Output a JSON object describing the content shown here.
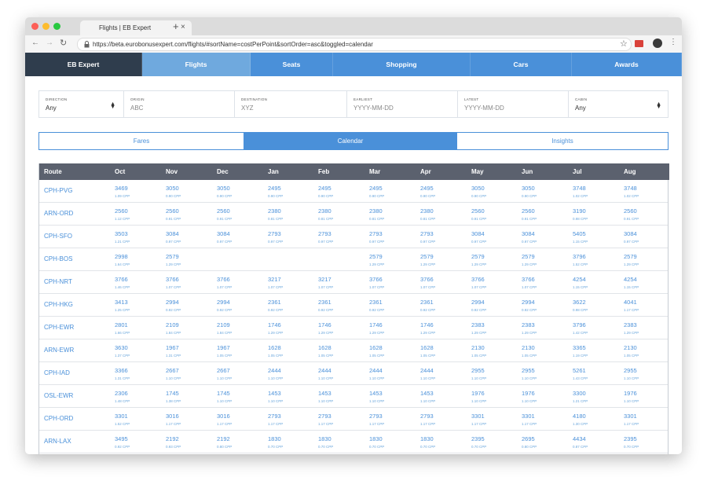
{
  "browser": {
    "tab_title": "Flights | EB Expert",
    "url": "https://beta.eurobonusexpert.com/flights/#sortName=costPerPoint&sortOrder=asc&toggled=calendar"
  },
  "nav": [
    "EB Expert",
    "Flights",
    "Seats",
    "Shopping",
    "Cars",
    "Awards"
  ],
  "filters": [
    {
      "label": "DIRECTION",
      "value": "Any"
    },
    {
      "label": "ORIGIN",
      "value": "ABC"
    },
    {
      "label": "DESTINATION",
      "value": "XYZ"
    },
    {
      "label": "EARLIEST",
      "value": "YYYY-MM-DD"
    },
    {
      "label": "LATEST",
      "value": "YYYY-MM-DD"
    },
    {
      "label": "CABIN",
      "value": "Any"
    }
  ],
  "view_tabs": [
    "Fares",
    "Calendar",
    "Insights"
  ],
  "table": {
    "header": [
      "Route",
      "Oct",
      "Nov",
      "Dec",
      "Jan",
      "Feb",
      "Mar",
      "Apr",
      "May",
      "Jun",
      "Jul",
      "Aug"
    ],
    "rows": [
      {
        "route": "CPH-PVG",
        "cells": [
          [
            "3469",
            "1.09 CPP"
          ],
          [
            "3050",
            "0.90 CPP"
          ],
          [
            "3050",
            "0.90 CPP"
          ],
          [
            "2495",
            "0.90 CPP"
          ],
          [
            "2495",
            "0.90 CPP"
          ],
          [
            "2495",
            "0.90 CPP"
          ],
          [
            "2495",
            "0.90 CPP"
          ],
          [
            "3050",
            "0.90 CPP"
          ],
          [
            "3050",
            "0.90 CPP"
          ],
          [
            "3748",
            "1.02 CPP"
          ],
          [
            "3748",
            "1.02 CPP"
          ]
        ]
      },
      {
        "route": "ARN-ORD",
        "cells": [
          [
            "2560",
            "1.12 CPP"
          ],
          [
            "2560",
            "0.91 CPP"
          ],
          [
            "2560",
            "0.91 CPP"
          ],
          [
            "2380",
            "0.81 CPP"
          ],
          [
            "2380",
            "0.81 CPP"
          ],
          [
            "2380",
            "0.81 CPP"
          ],
          [
            "2380",
            "0.81 CPP"
          ],
          [
            "2560",
            "0.91 CPP"
          ],
          [
            "2560",
            "0.91 CPP"
          ],
          [
            "3190",
            "0.98 CPP"
          ],
          [
            "2560",
            "0.91 CPP"
          ]
        ]
      },
      {
        "route": "CPH-SFO",
        "cells": [
          [
            "3503",
            "1.21 CPP"
          ],
          [
            "3084",
            "0.97 CPP"
          ],
          [
            "3084",
            "0.97 CPP"
          ],
          [
            "2793",
            "0.97 CPP"
          ],
          [
            "2793",
            "0.97 CPP"
          ],
          [
            "2793",
            "0.97 CPP"
          ],
          [
            "2793",
            "0.97 CPP"
          ],
          [
            "3084",
            "0.97 CPP"
          ],
          [
            "3084",
            "0.97 CPP"
          ],
          [
            "5405",
            "1.15 CPP"
          ],
          [
            "3084",
            "0.97 CPP"
          ]
        ]
      },
      {
        "route": "CPH-BOS",
        "cells": [
          [
            "2998",
            "1.64 CPP"
          ],
          [
            "2579",
            "1.29 CPP"
          ],
          null,
          null,
          null,
          [
            "2579",
            "1.29 CPP"
          ],
          [
            "2579",
            "1.29 CPP"
          ],
          [
            "2579",
            "1.29 CPP"
          ],
          [
            "2579",
            "1.29 CPP"
          ],
          [
            "3796",
            "1.52 CPP"
          ],
          [
            "2579",
            "1.29 CPP"
          ]
        ]
      },
      {
        "route": "CPH-NRT",
        "cells": [
          [
            "3766",
            "1.46 CPP"
          ],
          [
            "3766",
            "1.07 CPP"
          ],
          [
            "3766",
            "1.07 CPP"
          ],
          [
            "3217",
            "1.07 CPP"
          ],
          [
            "3217",
            "1.07 CPP"
          ],
          [
            "3766",
            "1.07 CPP"
          ],
          [
            "3766",
            "1.07 CPP"
          ],
          [
            "3766",
            "1.07 CPP"
          ],
          [
            "3766",
            "1.07 CPP"
          ],
          [
            "4254",
            "1.15 CPP"
          ],
          [
            "4254",
            "1.15 CPP"
          ]
        ]
      },
      {
        "route": "CPH-HKG",
        "cells": [
          [
            "3413",
            "1.25 CPP"
          ],
          [
            "2994",
            "0.92 CPP"
          ],
          [
            "2994",
            "0.92 CPP"
          ],
          [
            "2361",
            "0.92 CPP"
          ],
          [
            "2361",
            "0.92 CPP"
          ],
          [
            "2361",
            "0.92 CPP"
          ],
          [
            "2361",
            "0.92 CPP"
          ],
          [
            "2994",
            "0.92 CPP"
          ],
          [
            "2994",
            "0.92 CPP"
          ],
          [
            "3622",
            "0.98 CPP"
          ],
          [
            "4041",
            "1.17 CPP"
          ]
        ]
      },
      {
        "route": "CPH-EWR",
        "cells": [
          [
            "2801",
            "1.66 CPP"
          ],
          [
            "2109",
            "1.84 CPP"
          ],
          [
            "2109",
            "1.84 CPP"
          ],
          [
            "1746",
            "1.29 CPP"
          ],
          [
            "1746",
            "1.29 CPP"
          ],
          [
            "1746",
            "1.29 CPP"
          ],
          [
            "1746",
            "1.29 CPP"
          ],
          [
            "2383",
            "1.29 CPP"
          ],
          [
            "2383",
            "1.29 CPP"
          ],
          [
            "3796",
            "1.42 CPP"
          ],
          [
            "2383",
            "1.29 CPP"
          ]
        ]
      },
      {
        "route": "ARN-EWR",
        "cells": [
          [
            "3630",
            "1.37 CPP"
          ],
          [
            "1967",
            "1.31 CPP"
          ],
          [
            "1967",
            "1.05 CPP"
          ],
          [
            "1628",
            "1.05 CPP"
          ],
          [
            "1628",
            "1.05 CPP"
          ],
          [
            "1628",
            "1.05 CPP"
          ],
          [
            "1628",
            "1.05 CPP"
          ],
          [
            "2130",
            "1.05 CPP"
          ],
          [
            "2130",
            "1.05 CPP"
          ],
          [
            "3365",
            "1.19 CPP"
          ],
          [
            "2130",
            "1.05 CPP"
          ]
        ]
      },
      {
        "route": "CPH-IAD",
        "cells": [
          [
            "3366",
            "1.31 CPP"
          ],
          [
            "2667",
            "1.10 CPP"
          ],
          [
            "2667",
            "1.10 CPP"
          ],
          [
            "2444",
            "1.10 CPP"
          ],
          [
            "2444",
            "1.10 CPP"
          ],
          [
            "2444",
            "1.10 CPP"
          ],
          [
            "2444",
            "1.10 CPP"
          ],
          [
            "2955",
            "1.10 CPP"
          ],
          [
            "2955",
            "1.10 CPP"
          ],
          [
            "5261",
            "1.43 CPP"
          ],
          [
            "2955",
            "1.10 CPP"
          ]
        ]
      },
      {
        "route": "OSL-EWR",
        "cells": [
          [
            "2306",
            "1.48 CPP"
          ],
          [
            "1745",
            "1.38 CPP"
          ],
          [
            "1745",
            "1.10 CPP"
          ],
          [
            "1453",
            "1.10 CPP"
          ],
          [
            "1453",
            "1.10 CPP"
          ],
          [
            "1453",
            "1.10 CPP"
          ],
          [
            "1453",
            "1.10 CPP"
          ],
          [
            "1976",
            "1.10 CPP"
          ],
          [
            "1976",
            "1.10 CPP"
          ],
          [
            "3300",
            "1.21 CPP"
          ],
          [
            "1976",
            "1.10 CPP"
          ]
        ]
      },
      {
        "route": "CPH-ORD",
        "cells": [
          [
            "3301",
            "1.52 CPP"
          ],
          [
            "3016",
            "1.17 CPP"
          ],
          [
            "3016",
            "1.17 CPP"
          ],
          [
            "2793",
            "1.17 CPP"
          ],
          [
            "2793",
            "1.17 CPP"
          ],
          [
            "2793",
            "1.17 CPP"
          ],
          [
            "2793",
            "1.17 CPP"
          ],
          [
            "3301",
            "1.17 CPP"
          ],
          [
            "3301",
            "1.17 CPP"
          ],
          [
            "4180",
            "1.30 CPP"
          ],
          [
            "3301",
            "1.17 CPP"
          ]
        ]
      },
      {
        "route": "ARN-LAX",
        "cells": [
          [
            "3495",
            "0.92 CPP"
          ],
          [
            "2192",
            "0.93 CPP"
          ],
          [
            "2192",
            "0.80 CPP"
          ],
          [
            "1830",
            "0.70 CPP"
          ],
          [
            "1830",
            "0.70 CPP"
          ],
          [
            "1830",
            "0.70 CPP"
          ],
          [
            "1830",
            "0.70 CPP"
          ],
          [
            "2395",
            "0.70 CPP"
          ],
          [
            "2695",
            "0.80 CPP"
          ],
          [
            "4434",
            "0.87 CPP"
          ],
          [
            "2395",
            "0.70 CPP"
          ]
        ]
      }
    ]
  }
}
